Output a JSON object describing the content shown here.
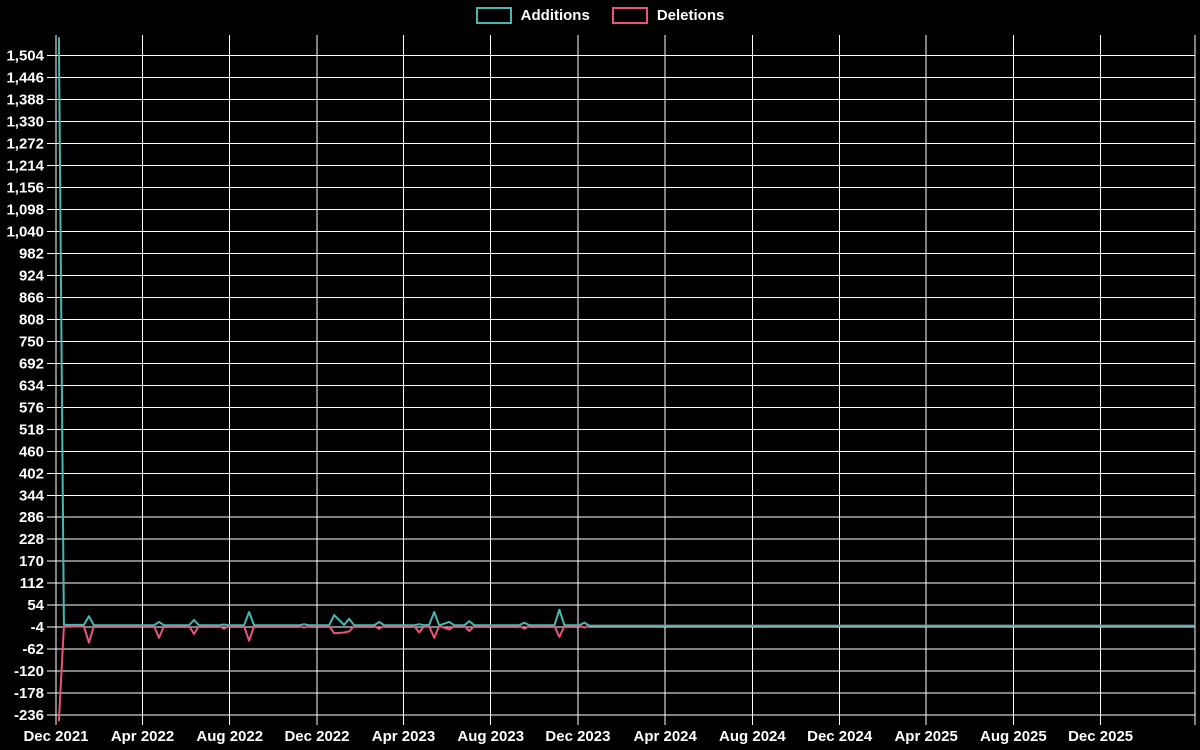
{
  "page": {
    "background_color": "#000000"
  },
  "chart_data": {
    "type": "line",
    "title": "",
    "xlabel": "",
    "ylabel": "",
    "legend_position": "top",
    "grid": true,
    "grid_color": "#ffffff",
    "text_color": "#ffffff",
    "background_color": "#000000",
    "legend": [
      {
        "label": "Additions",
        "color": "#45b8b2"
      },
      {
        "label": "Deletions",
        "color": "#e8547a"
      }
    ],
    "x_tick_labels": [
      "Dec 2021",
      "Apr 2022",
      "Aug 2022",
      "Dec 2022",
      "Apr 2023",
      "Aug 2023",
      "Dec 2023",
      "Apr 2024",
      "Aug 2024",
      "Dec 2024",
      "Apr 2025",
      "Aug 2025",
      "Dec 2025"
    ],
    "y_tick_values": [
      1504,
      1446,
      1388,
      1330,
      1272,
      1214,
      1156,
      1098,
      1040,
      982,
      924,
      866,
      808,
      750,
      692,
      634,
      576,
      518,
      460,
      402,
      344,
      286,
      228,
      170,
      112,
      54,
      -4,
      -62,
      -120,
      -178,
      -236
    ],
    "y_tick_labels": [
      "1,504",
      "1,446",
      "1,388",
      "1,330",
      "1,272",
      "1,214",
      "1,156",
      "1,098",
      "1,040",
      "982",
      "924",
      "866",
      "808",
      "750",
      "692",
      "634",
      "576",
      "518",
      "460",
      "402",
      "344",
      "286",
      "228",
      "170",
      "112",
      "54",
      "-4",
      "-62",
      "-120",
      "-178",
      "-236"
    ],
    "y_tick_step": 58,
    "ylim": [
      -262,
      1558
    ],
    "x_domain": [
      "2021-12-01",
      "2026-04-12"
    ],
    "series_names": [
      "Additions",
      "Deletions"
    ],
    "points_format": [
      "date",
      "additions",
      "deletions"
    ],
    "points": [
      [
        "2021-12-05",
        1550,
        -250
      ],
      [
        "2021-12-12",
        2,
        -3
      ],
      [
        "2022-01-09",
        2,
        -2
      ],
      [
        "2022-01-16",
        25,
        -45
      ],
      [
        "2022-01-23",
        1,
        -1
      ],
      [
        "2022-04-17",
        1,
        -1
      ],
      [
        "2022-04-24",
        10,
        -32
      ],
      [
        "2022-05-01",
        1,
        -1
      ],
      [
        "2022-06-05",
        1,
        -1
      ],
      [
        "2022-06-12",
        15,
        -22
      ],
      [
        "2022-06-19",
        1,
        -1
      ],
      [
        "2022-07-17",
        1,
        -1
      ],
      [
        "2022-07-24",
        3,
        -8
      ],
      [
        "2022-07-31",
        1,
        -1
      ],
      [
        "2022-08-21",
        1,
        -1
      ],
      [
        "2022-08-28",
        36,
        -40
      ],
      [
        "2022-09-04",
        1,
        -1
      ],
      [
        "2022-11-06",
        1,
        -1
      ],
      [
        "2022-11-13",
        4,
        -5
      ],
      [
        "2022-11-20",
        1,
        -1
      ],
      [
        "2022-12-18",
        1,
        -1
      ],
      [
        "2022-12-25",
        28,
        -20
      ],
      [
        "2023-01-08",
        2,
        -18
      ],
      [
        "2023-01-15",
        18,
        -15
      ],
      [
        "2023-01-22",
        1,
        -1
      ],
      [
        "2023-02-19",
        1,
        -1
      ],
      [
        "2023-02-26",
        10,
        -8
      ],
      [
        "2023-03-05",
        1,
        -1
      ],
      [
        "2023-04-16",
        1,
        -1
      ],
      [
        "2023-04-23",
        4,
        -18
      ],
      [
        "2023-04-30",
        1,
        -1
      ],
      [
        "2023-05-07",
        2,
        -2
      ],
      [
        "2023-05-14",
        36,
        -32
      ],
      [
        "2023-05-21",
        1,
        -1
      ],
      [
        "2023-06-04",
        10,
        -10
      ],
      [
        "2023-06-11",
        1,
        -1
      ],
      [
        "2023-06-25",
        1,
        -1
      ],
      [
        "2023-07-02",
        12,
        -14
      ],
      [
        "2023-07-09",
        1,
        -1
      ],
      [
        "2023-09-10",
        1,
        -1
      ],
      [
        "2023-09-17",
        8,
        -8
      ],
      [
        "2023-09-24",
        1,
        -1
      ],
      [
        "2023-10-29",
        1,
        -1
      ],
      [
        "2023-11-05",
        42,
        -30
      ],
      [
        "2023-11-12",
        1,
        -1
      ],
      [
        "2023-12-03",
        1,
        -1
      ],
      [
        "2023-12-10",
        8,
        -5
      ],
      [
        "2023-12-17",
        0,
        0
      ],
      [
        "2024-06-01",
        0,
        0
      ],
      [
        "2026-04-12",
        0,
        0
      ]
    ]
  }
}
